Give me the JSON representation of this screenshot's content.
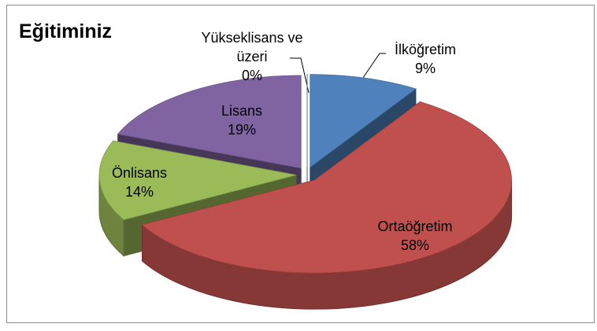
{
  "chart_data": {
    "type": "pie",
    "title": "Eğitiminiz",
    "categories": [
      "İlköğretim",
      "Ortaöğretim",
      "Önlisans",
      "Lisans",
      "Yükseklisans ve üzeri"
    ],
    "values": [
      9,
      58,
      14,
      19,
      0
    ],
    "value_labels": [
      "9%",
      "58%",
      "14%",
      "19%",
      "0%"
    ],
    "colors": [
      "#4f81bd",
      "#c0504d",
      "#9bbb59",
      "#8064a2",
      "#4bacc6"
    ]
  }
}
